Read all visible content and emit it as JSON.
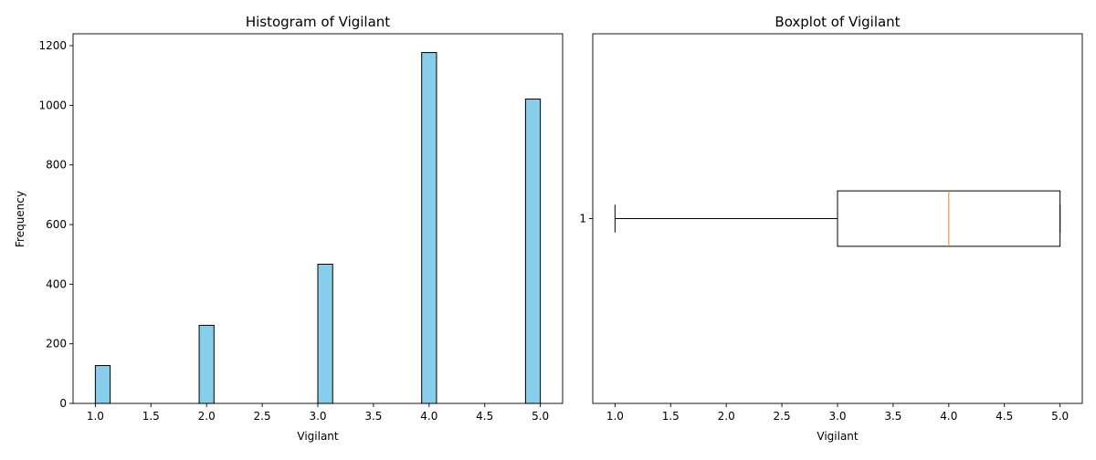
{
  "chart_data": [
    {
      "type": "bar",
      "subtype": "histogram",
      "title": "Histogram of Vigilant",
      "xlabel": "Vigilant",
      "ylabel": "Frequency",
      "xlim": [
        0.8,
        5.2
      ],
      "ylim": [
        0,
        1240
      ],
      "xticks": [
        "1.0",
        "1.5",
        "2.0",
        "2.5",
        "3.0",
        "3.5",
        "4.0",
        "4.5",
        "5.0"
      ],
      "xtick_values": [
        1.0,
        1.5,
        2.0,
        2.5,
        3.0,
        3.5,
        4.0,
        4.5,
        5.0
      ],
      "yticks": [
        "0",
        "200",
        "400",
        "600",
        "800",
        "1000",
        "1200"
      ],
      "ytick_values": [
        0,
        200,
        400,
        600,
        800,
        1000,
        1200
      ],
      "bin_width": 0.1333,
      "bars": [
        {
          "x_start": 1.0,
          "value": 127
        },
        {
          "x_start": 1.9333,
          "value": 262
        },
        {
          "x_start": 3.0,
          "value": 467
        },
        {
          "x_start": 3.9333,
          "value": 1177
        },
        {
          "x_start": 4.8667,
          "value": 1021
        }
      ],
      "colors": {
        "bar_fill": "#87ceeb",
        "bar_edge": "#000000"
      },
      "grid": false
    },
    {
      "type": "boxplot",
      "orientation": "horizontal",
      "title": "Boxplot of Vigilant",
      "xlabel": "Vigilant",
      "xlim": [
        0.8,
        5.2
      ],
      "xticks": [
        "1.0",
        "1.5",
        "2.0",
        "2.5",
        "3.0",
        "3.5",
        "4.0",
        "4.5",
        "5.0"
      ],
      "xtick_values": [
        1.0,
        1.5,
        2.0,
        2.5,
        3.0,
        3.5,
        4.0,
        4.5,
        5.0
      ],
      "yticks": [
        "1"
      ],
      "box": {
        "whisker_low": 1.0,
        "q1": 3.0,
        "median": 4.0,
        "q3": 5.0,
        "whisker_high": 5.0
      },
      "colors": {
        "median": "#ff7f0e",
        "box": "#000000"
      },
      "grid": false
    }
  ]
}
